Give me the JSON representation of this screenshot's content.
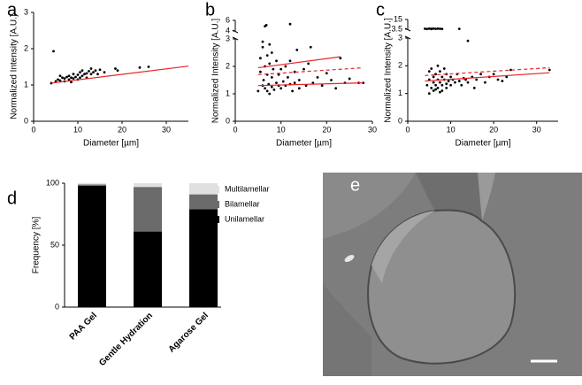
{
  "chart_data": [
    {
      "type": "scatter",
      "panel_label": "a",
      "x_label": "Diameter [µm]",
      "y_label": "Normalized Intensity [A.U.]",
      "xlim": [
        0,
        35
      ],
      "xticks": [
        0,
        10,
        20,
        30
      ],
      "ylim": [
        0,
        3
      ],
      "yticks": [
        0,
        1,
        2,
        3
      ],
      "series": [
        {
          "color": "#000000",
          "x": [
            4.5,
            4,
            5,
            5.5,
            6,
            6.5,
            7,
            7,
            7.5,
            8,
            8,
            8.5,
            9,
            9,
            9.5,
            10,
            10,
            10.5,
            11,
            11,
            11.5,
            12,
            12,
            12.5,
            13,
            13,
            13.5,
            14,
            14.5,
            15,
            16,
            18.5,
            19,
            24,
            26,
            6,
            8.5,
            10.5
          ],
          "values": [
            1.93,
            1.05,
            1.1,
            1.15,
            1.12,
            1.2,
            1.18,
            1.1,
            1.22,
            1.15,
            1.25,
            1.2,
            1.3,
            1.18,
            1.22,
            1.28,
            1.15,
            1.35,
            1.25,
            1.4,
            1.3,
            1.32,
            1.2,
            1.38,
            1.3,
            1.45,
            1.35,
            1.4,
            1.3,
            1.42,
            1.35,
            1.45,
            1.4,
            1.48,
            1.5,
            1.25,
            1.08,
            1.2
          ]
        }
      ],
      "fits": [
        {
          "color": "#e8232a",
          "dashed": false,
          "x": [
            4,
            35
          ],
          "values": [
            1.05,
            1.52
          ]
        }
      ]
    },
    {
      "type": "scatter",
      "panel_label": "b",
      "x_label": "Diameter [µm]",
      "y_label": "Normalized Intensity [A.U.]",
      "xlim": [
        0,
        30
      ],
      "xticks": [
        0,
        10,
        20,
        30
      ],
      "ylim": [
        0,
        3
      ],
      "yticks": [
        0,
        1,
        2,
        3
      ],
      "y_break": {
        "ylim": [
          4,
          6
        ],
        "yticks": [
          4,
          6
        ]
      },
      "series": [
        {
          "color": "#000000",
          "x": [
            6.5,
            6.8,
            12,
            5,
            5.5,
            5.5,
            6,
            6,
            6.2,
            6.5,
            6.5,
            7,
            7,
            7,
            7.3,
            7.5,
            7.5,
            8,
            8,
            8,
            8.3,
            8.5,
            9,
            9,
            9.5,
            9.5,
            10,
            10,
            10.5,
            11,
            11,
            11.5,
            12,
            12,
            12.5,
            13,
            13,
            13.5,
            14,
            14,
            15,
            15.5,
            16,
            16.5,
            17,
            18,
            19,
            20,
            21,
            22,
            23,
            24,
            25,
            27,
            28,
            6,
            7.5
          ],
          "values": [
            4.9,
            5.1,
            5.3,
            1.1,
            2.3,
            1.8,
            1.3,
            2.7,
            1.5,
            2.0,
            1.2,
            1.7,
            1.1,
            2.4,
            1.35,
            2.1,
            1.0,
            1.6,
            1.25,
            2.5,
            1.9,
            1.15,
            1.4,
            2.2,
            1.3,
            1.7,
            1.2,
            1.9,
            1.45,
            2.0,
            1.3,
            1.6,
            2.2,
            1.35,
            1.1,
            1.8,
            1.4,
            2.6,
            1.2,
            1.5,
            1.9,
            1.3,
            2.1,
            2.7,
            1.4,
            1.6,
            1.3,
            1.75,
            1.5,
            1.2,
            2.3,
            1.4,
            1.55,
            1.4,
            1.4,
            2.9,
            2.8
          ]
        }
      ],
      "fits": [
        {
          "color": "#e8232a",
          "dashed": false,
          "x": [
            5,
            23
          ],
          "values": [
            1.95,
            2.35
          ]
        },
        {
          "color": "#e8232a",
          "dashed": true,
          "x": [
            5,
            28
          ],
          "values": [
            1.7,
            1.95
          ]
        },
        {
          "color": "#e8232a",
          "dashed": false,
          "x": [
            5,
            28
          ],
          "values": [
            1.3,
            1.4
          ]
        }
      ]
    },
    {
      "type": "scatter",
      "panel_label": "c",
      "x_label": "Diameter [µm]",
      "y_label": "Normalized Intensity [A.U.]",
      "xlim": [
        0,
        35
      ],
      "xticks": [
        0,
        10,
        20,
        30
      ],
      "ylim": [
        0,
        3
      ],
      "yticks": [
        0,
        1,
        2,
        3
      ],
      "y_break": {
        "ylim": [
          3.5,
          15
        ],
        "yticks": [
          3.5,
          15
        ]
      },
      "series": [
        {
          "color": "#000000",
          "x": [
            4,
            4.5,
            5,
            5.5,
            6,
            6.5,
            7,
            7.5,
            8,
            5.5,
            12,
            4.5,
            5,
            5,
            5.5,
            5.5,
            6,
            6,
            6,
            6.5,
            6.5,
            7,
            7,
            7,
            7.5,
            7.5,
            8,
            8,
            8,
            8.5,
            8.5,
            9,
            9,
            9.5,
            10,
            10,
            10.5,
            11,
            11.5,
            12,
            12.5,
            13,
            13.5,
            14,
            14,
            15,
            15.5,
            16,
            17,
            18,
            19,
            20,
            21,
            22,
            23,
            24,
            33,
            5,
            6.5,
            7.5,
            9
          ],
          "values": [
            4.0,
            3.8,
            4.2,
            4.0,
            4.3,
            3.9,
            4.1,
            4.0,
            3.8,
            3.6,
            3.9,
            1.3,
            1.8,
            1.5,
            1.2,
            1.9,
            1.4,
            1.6,
            1.1,
            1.7,
            1.3,
            1.5,
            1.2,
            2.0,
            1.4,
            1.8,
            1.3,
            1.6,
            1.1,
            1.5,
            1.9,
            1.35,
            1.7,
            1.45,
            1.3,
            1.6,
            1.5,
            1.4,
            1.7,
            1.45,
            1.3,
            1.55,
            1.5,
            2.9,
            1.4,
            1.6,
            1.2,
            1.5,
            1.7,
            1.4,
            1.6,
            1.7,
            1.5,
            1.45,
            1.6,
            1.85,
            1.85,
            1.0,
            1.15,
            1.05,
            1.2
          ]
        }
      ],
      "fits": [
        {
          "color": "#e8232a",
          "dashed": true,
          "x": [
            4,
            33
          ],
          "values": [
            1.65,
            1.93
          ]
        },
        {
          "color": "#e8232a",
          "dashed": false,
          "x": [
            4,
            33
          ],
          "values": [
            1.45,
            1.75
          ]
        }
      ]
    },
    {
      "type": "stacked-bar",
      "panel_label": "d",
      "y_label": "Frequency [%]",
      "categories": [
        "PAA Gel",
        "Gentle Hydration",
        "Agarose Gel"
      ],
      "ylim": [
        0,
        100
      ],
      "yticks": [
        0,
        50,
        100
      ],
      "series": [
        {
          "name": "Unilamellar",
          "color": "#000000",
          "values": [
            98,
            61,
            79
          ]
        },
        {
          "name": "Bilamellar",
          "color": "#6b6b6b",
          "values": [
            1,
            36,
            12
          ]
        },
        {
          "name": "Multilamellar",
          "color": "#e0e0e0",
          "values": [
            1,
            3,
            9
          ]
        }
      ]
    }
  ],
  "image_panel": {
    "label": "e"
  }
}
